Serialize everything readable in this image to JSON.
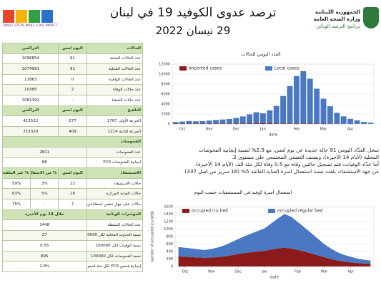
{
  "header": {
    "title": "ترصد عدوى الكوفيد 19 في لبنان",
    "date": "29 نيسان 2022",
    "left_logo_text": "SMALL STEPS MAKE A BIG IMPACT",
    "right_logo": [
      "الجمهورية اللبنانية",
      "وزارة الصحة العامة",
      "برنامج الترصد الوبائي"
    ]
  },
  "table": {
    "sections": [
      {
        "header": [
          "الحالات",
          "اليوم امس",
          "التراكمي"
        ],
        "rows": [
          [
            "عدد الحالات المثبتة",
            "91",
            "1096854"
          ],
          [
            "عدد الحالات المحلية",
            "91",
            "1074991"
          ],
          [
            "عدد الحالات الوافدة",
            "0",
            "21863"
          ],
          [
            "عدد حالات الوفاة",
            "2",
            "10385"
          ],
          [
            "عدد حالات الشفاء",
            "-",
            "1081392"
          ]
        ]
      },
      {
        "header": [
          "التلقيح",
          "اليوم امس",
          "التراكمي"
        ],
        "rows": [
          [
            "الجرعة الأولى 1787",
            "277",
            "413522"
          ],
          [
            "الجرعة الثانية 1214",
            "409",
            "715320"
          ]
        ]
      },
      {
        "header": [
          "الفحوصات"
        ],
        "rows": [
          [
            "عدد الفحوصات",
            "2811"
          ],
          [
            "ايجابية الفحوصات PCR",
            "88"
          ]
        ]
      },
      {
        "header": [
          "الاستشفاء",
          "اليوم امس",
          "% من الاشغال",
          "% غير الملقحين"
        ],
        "rows": [
          [
            "حالات الاستشفاء",
            "22",
            "3%",
            "59%"
          ],
          [
            "حالات العناية المركزة",
            "16",
            "5%",
            "63%"
          ],
          [
            "حالات على جهاز تنفس اصطناعي",
            "7",
            "-",
            "75%"
          ]
        ]
      },
      {
        "header": [
          "المؤشرات الوبائية",
          "خلال 14 يوم الأخيرة"
        ],
        "rows": [
          [
            "عدد الحالات النشطة",
            "1448"
          ],
          [
            "نسبة الحدوث المحلية لكل 100000",
            "27"
          ],
          [
            "نسبة الوفيات لكل 100000",
            "0.55"
          ],
          [
            "نسبة الفحوصات لكل 100000",
            "895"
          ],
          [
            "إيجابية فحص PCR لكل مئة فحص",
            "2.9%"
          ]
        ]
      }
    ]
  },
  "text": {
    "paragraph": [
      "سجل العدّاد اليومي 91 حالة جديدة عن يوم امس، مع 2.9% لنسبة إيجابية الفحوصات",
      "المحلية (لأيام 14 الأخيرة)، ويصنف التفشي المجتمعي على مستوى 2.",
      "أما عدّاد الوفيات، فتم تسجيل حالتين وفاة مع 0.5 وفاة لكل مئة الف (لأيام 14 الأخيرة).",
      "من جهة الاستشفاء، بلغت نسبة استعمال اسرة العناية الفائقة 5% (16 سرير من اصل 337)."
    ]
  },
  "chart_data": [
    {
      "type": "bar",
      "title": "العدد اليومي للحالات",
      "xlabel": "date",
      "legend": "top",
      "categories": [
        null,
        "Oct",
        null,
        null,
        null,
        "Nov",
        null,
        null,
        null,
        "Dec",
        null,
        null,
        null,
        "Jan",
        null,
        null,
        null,
        null,
        "Feb",
        null,
        null,
        null,
        "Mar",
        null,
        null,
        null,
        "Apr",
        null,
        null,
        null
      ],
      "series": [
        {
          "name": "Imported cases",
          "color": "#8b1a1a",
          "values": [
            80,
            90,
            100,
            90,
            80,
            80,
            90,
            100,
            100,
            110,
            120,
            130,
            150,
            140,
            130,
            120,
            110,
            100,
            100,
            90,
            80,
            70,
            60,
            50,
            40,
            30,
            30,
            25,
            20,
            15
          ]
        },
        {
          "name": "Local cases",
          "color": "#4a78c2",
          "values": [
            300,
            400,
            500,
            450,
            500,
            600,
            700,
            800,
            900,
            1100,
            1400,
            1800,
            2200,
            2000,
            2600,
            3500,
            5500,
            7500,
            9500,
            10500,
            9000,
            7000,
            5000,
            3500,
            2200,
            1500,
            1000,
            700,
            400,
            250
          ]
        }
      ],
      "ylim": [
        0,
        12000
      ],
      "yticks": [
        0,
        2000,
        4000,
        6000,
        8000,
        10000,
        12000
      ]
    },
    {
      "type": "area",
      "title": "استعمال أسرة كوفيد في المستشفيات حسب اليوم",
      "xlabel": "date",
      "ylabel": "number of occupied icu beds",
      "legend": "top",
      "categories": [
        null,
        "Oct",
        null,
        null,
        null,
        "Nov",
        null,
        null,
        null,
        "Dec",
        null,
        null,
        null,
        "Jan",
        null,
        null,
        null,
        null,
        "Feb",
        null,
        null,
        null,
        "Mar",
        null,
        null,
        null,
        "Apr",
        null,
        null,
        null
      ],
      "series": [
        {
          "name": "occupied icu bed",
          "color": "#8b1a1a",
          "values": [
            270,
            260,
            250,
            240,
            230,
            240,
            250,
            270,
            300,
            330,
            360,
            380,
            400,
            420,
            450,
            480,
            500,
            480,
            440,
            400,
            350,
            300,
            250,
            200,
            160,
            130,
            110,
            90,
            80,
            70
          ]
        },
        {
          "name": "occupied regular bed",
          "color": "#4a78c2",
          "values": [
            250,
            240,
            230,
            220,
            210,
            230,
            260,
            300,
            350,
            400,
            450,
            500,
            550,
            600,
            700,
            800,
            900,
            850,
            750,
            650,
            550,
            450,
            350,
            280,
            220,
            180,
            150,
            120,
            100,
            90
          ]
        }
      ],
      "ylim": [
        0,
        1600
      ],
      "yticks": [
        0,
        200,
        400,
        600,
        800,
        1000,
        1200,
        1400,
        1600
      ]
    }
  ]
}
